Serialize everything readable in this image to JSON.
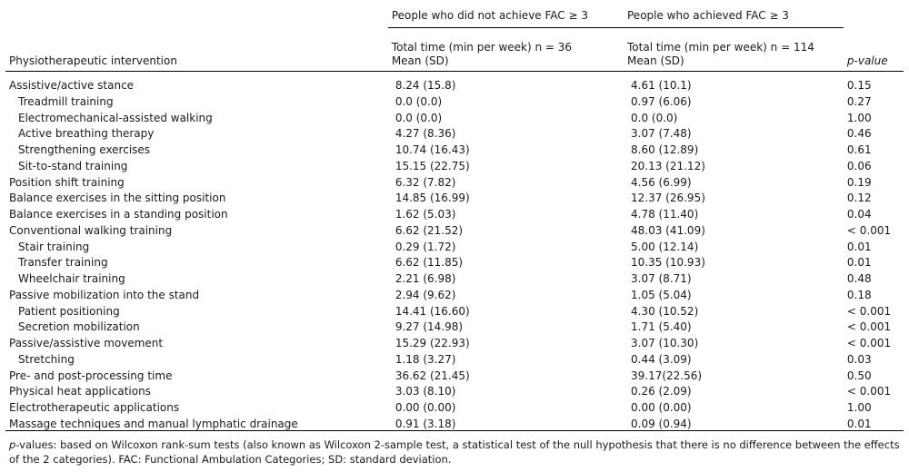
{
  "header": {
    "group1": "People who did not achieve FAC ≥ 3",
    "group2": "People who achieved FAC ≥ 3",
    "col_intervention": "Physiotherapeutic intervention",
    "col_g1_line1": "Total time (min per week) n = 36",
    "col_g1_line2": "Mean (SD)",
    "col_g2_line1": "Total time (min per week) n = 114",
    "col_g2_line2": "Mean (SD)",
    "col_p": "p-value"
  },
  "rows": [
    {
      "label": "Assistive/active stance",
      "g1": "8.24 (15.8)",
      "g2": "4.61 (10.1)",
      "p": "0.15",
      "sub": false
    },
    {
      "label": "Treadmill training",
      "g1": "0.0 (0.0)",
      "g2": "0.97 (6.06)",
      "p": "0.27",
      "sub": true
    },
    {
      "label": "Electromechanical-assisted walking",
      "g1": "0.0 (0.0)",
      "g2": "0.0 (0.0)",
      "p": "1.00",
      "sub": true
    },
    {
      "label": "Active breathing therapy",
      "g1": "4.27 (8.36)",
      "g2": "3.07 (7.48)",
      "p": "0.46",
      "sub": true
    },
    {
      "label": "Strengthening exercises",
      "g1": "10.74 (16.43)",
      "g2": "8.60 (12.89)",
      "p": "0.61",
      "sub": true
    },
    {
      "label": "Sit-to-stand training",
      "g1": "15.15 (22.75)",
      "g2": "20.13 (21.12)",
      "p": "0.06",
      "sub": true
    },
    {
      "label": "Position shift training",
      "g1": "6.32 (7.82)",
      "g2": "4.56 (6.99)",
      "p": "0.19",
      "sub": false
    },
    {
      "label": "Balance exercises in the sitting position",
      "g1": "14.85 (16.99)",
      "g2": "12.37 (26.95)",
      "p": "0.12",
      "sub": false
    },
    {
      "label": "Balance exercises in a standing position",
      "g1": "1.62 (5.03)",
      "g2": "4.78 (11.40)",
      "p": "0.04",
      "sub": false
    },
    {
      "label": "Conventional walking training",
      "g1": "6.62 (21.52)",
      "g2": "48.03 (41.09)",
      "p": "< 0.001",
      "sub": false
    },
    {
      "label": "Stair training",
      "g1": "0.29 (1.72)",
      "g2": "5.00 (12.14)",
      "p": "0.01",
      "sub": true
    },
    {
      "label": "Transfer training",
      "g1": "6.62 (11.85)",
      "g2": "10.35 (10.93)",
      "p": "0.01",
      "sub": true
    },
    {
      "label": "Wheelchair training",
      "g1": "2.21 (6.98)",
      "g2": "3.07 (8.71)",
      "p": "0.48",
      "sub": true
    },
    {
      "label": "Passive mobilization into the stand",
      "g1": "2.94 (9.62)",
      "g2": "1.05 (5.04)",
      "p": "0.18",
      "sub": false
    },
    {
      "label": "Patient positioning",
      "g1": "14.41 (16.60)",
      "g2": "4.30 (10.52)",
      "p": "< 0.001",
      "sub": true
    },
    {
      "label": "Secretion mobilization",
      "g1": "9.27 (14.98)",
      "g2": "1.71 (5.40)",
      "p": "< 0.001",
      "sub": true
    },
    {
      "label": "Passive/assistive movement",
      "g1": "15.29 (22.93)",
      "g2": "3.07 (10.30)",
      "p": "< 0.001",
      "sub": false
    },
    {
      "label": "Stretching",
      "g1": "1.18 (3.27)",
      "g2": "0.44 (3.09)",
      "p": "0.03",
      "sub": true
    },
    {
      "label": "Pre- and post-processing time",
      "g1": "36.62 (21.45)",
      "g2": "39.17(22.56)",
      "p": "0.50",
      "sub": false
    },
    {
      "label": "Physical heat applications",
      "g1": "3.03 (8.10)",
      "g2": "0.26 (2.09)",
      "p": "< 0.001",
      "sub": false
    },
    {
      "label": "Electrotherapeutic applications",
      "g1": "0.00 (0.00)",
      "g2": "0.00 (0.00)",
      "p": "1.00",
      "sub": false
    },
    {
      "label": "Massage techniques and manual lymphatic drainage",
      "g1": "0.91 (3.18)",
      "g2": "0.09 (0.94)",
      "p": "0.01",
      "sub": false
    }
  ],
  "footnote": {
    "p_term": "p",
    "text": "-values: based on Wilcoxon rank-sum tests (also known as Wilcoxon 2-sample test, a statistical test of the null hypothesis that there is no difference between the effects of the 2 categories). FAC: Functional Ambulation Categories; SD: standard deviation."
  }
}
